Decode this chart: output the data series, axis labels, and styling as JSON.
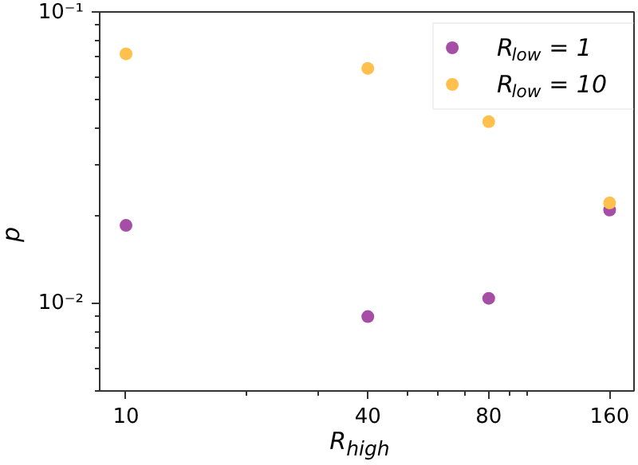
{
  "chart_data": {
    "type": "scatter",
    "xlabel": "R$_{high}$",
    "ylabel": "p",
    "log": "xy",
    "grid": false,
    "legend": "top right",
    "marker": "circle",
    "x": [
      10,
      40,
      80,
      160
    ],
    "series": [
      {
        "name": "R$_{low}$ = 1",
        "color": "#a64da6",
        "values": [
          0.0185,
          0.009,
          0.0104,
          0.0209
        ]
      },
      {
        "name": "R$_{low}$ = 10",
        "color": "#ffc04d",
        "values": [
          0.0718,
          0.064,
          0.042,
          0.0221
        ]
      }
    ],
    "xlim": [
      8.6,
      184
    ],
    "ylim": [
      0.005,
      0.1
    ],
    "xticks": [
      10,
      {
        "value": 20,
        "label": null
      },
      {
        "value": 30,
        "label": null
      },
      40,
      {
        "value": 50,
        "label": null
      },
      {
        "value": 60,
        "label": null
      },
      {
        "value": 70,
        "label": null
      },
      80,
      {
        "value": 90,
        "label": null
      },
      {
        "value": 100,
        "label": null
      },
      160
    ],
    "yticks": [
      {
        "value": 0.005,
        "label": null
      },
      {
        "value": 0.006,
        "label": null
      },
      {
        "value": 0.007,
        "label": null
      },
      {
        "value": 0.008,
        "label": null
      },
      {
        "value": 0.009,
        "label": null
      },
      {
        "value": 0.01,
        "label": "10⁻²"
      },
      {
        "value": 0.02,
        "label": null
      },
      {
        "value": 0.03,
        "label": null
      },
      {
        "value": 0.04,
        "label": null
      },
      {
        "value": 0.05,
        "label": null
      },
      {
        "value": 0.06,
        "label": null
      },
      {
        "value": 0.07,
        "label": null
      },
      {
        "value": 0.08,
        "label": null
      },
      {
        "value": 0.09,
        "label": null
      },
      {
        "value": 0.1,
        "label": "10⁻¹"
      }
    ]
  }
}
